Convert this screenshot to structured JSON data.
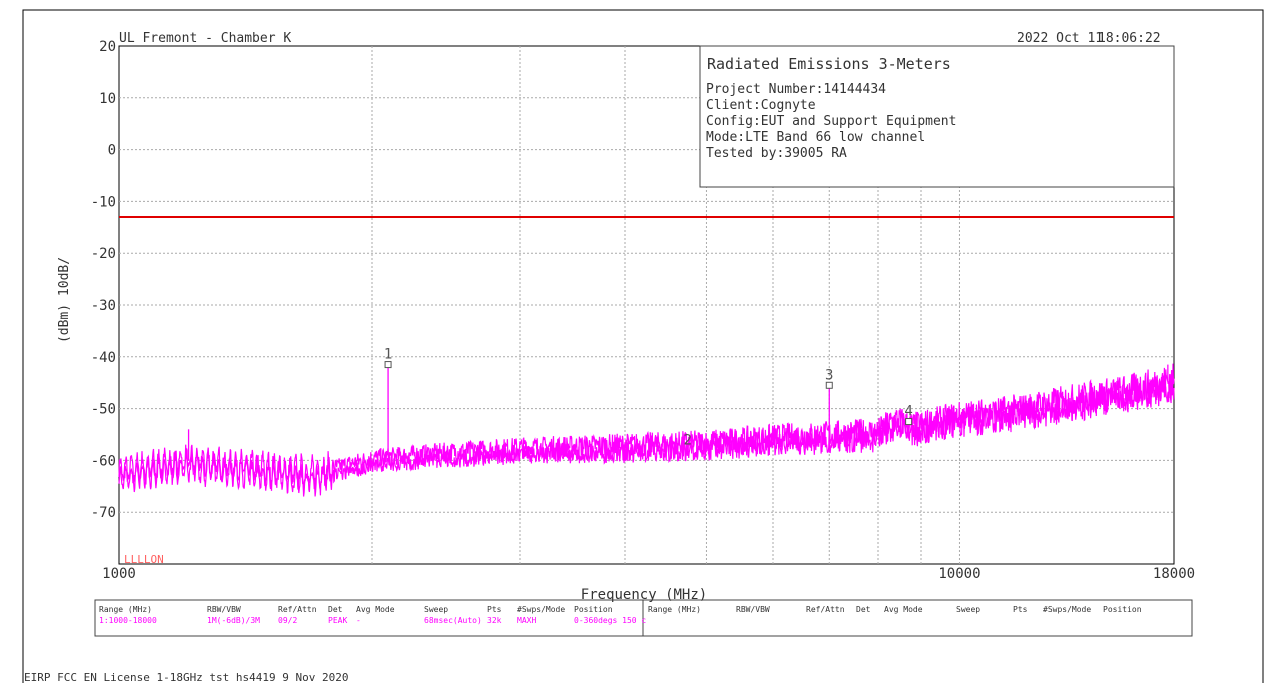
{
  "header": {
    "site": "UL Fremont - Chamber K",
    "date": "2022 Oct 11",
    "time": "18:06:22"
  },
  "info_box": {
    "title": "Radiated Emissions 3-Meters",
    "lines": [
      "Project Number:14144434",
      "Client:Cognyte",
      "Config:EUT and Support Equipment",
      "Mode:LTE Band 66 low channel",
      "Tested by:39005 RA"
    ]
  },
  "footer_text": "EIRP FCC EN License 1-18GHz tst hs4419  9 Nov 2020",
  "param_table": {
    "headers": [
      "Range (MHz)",
      "RBW/VBW",
      "Ref/Attn",
      "Det",
      "Avg Mode",
      "Sweep",
      "Pts",
      "#Swps/Mode",
      "Position"
    ],
    "row": [
      "1:1000-18000",
      "1M(-6dB)/3M",
      "09/2",
      "PEAK",
      "-",
      "68msec(Auto)",
      "32k",
      "MAXH",
      "0-360degs 150 c"
    ],
    "headers_right": [
      "Range (MHz)",
      "RBW/VBW",
      "Ref/Attn",
      "Det",
      "Avg Mode",
      "Sweep",
      "Pts",
      "#Swps/Mode",
      "Position"
    ]
  },
  "colors": {
    "trace": "#ff00ff",
    "limit": "#e00000",
    "grid": "#aaaaaa",
    "text": "#333333",
    "param_text": "#ff00ff",
    "corner_label": "#ff6060"
  },
  "chart_data": {
    "type": "line",
    "title": "",
    "xlabel": "Frequency (MHz)",
    "ylabel": "(dBm) 10dB/",
    "x_scale": "log",
    "xlim": [
      1000,
      18000
    ],
    "ylim": [
      -80,
      20
    ],
    "y_ticks": [
      20,
      10,
      0,
      -10,
      -20,
      -30,
      -40,
      -50,
      -60,
      -70
    ],
    "x_tick_labels": [
      {
        "x": 1000,
        "label": "1000"
      },
      {
        "x": 10000,
        "label": "10000"
      },
      {
        "x": 18000,
        "label": "18000"
      }
    ],
    "x_grid": [
      2000,
      3000,
      4000,
      5000,
      6000,
      7000,
      8000,
      9000,
      10000
    ],
    "grid": true,
    "limit_line": {
      "value": -13
    },
    "corner_label": "LLLLON",
    "markers": [
      {
        "label": "1",
        "x": 2090,
        "y": -41.5,
        "boxed": true
      },
      {
        "label": "2",
        "x": 4750,
        "y": -56,
        "boxed": false
      },
      {
        "label": "3",
        "x": 7000,
        "y": -45.5,
        "boxed": true
      },
      {
        "label": "4",
        "x": 8700,
        "y": -52.5,
        "boxed": true
      }
    ],
    "series": [
      {
        "noise_floor": [
          {
            "x": 1000,
            "y": -62
          },
          {
            "x": 1100,
            "y": -61
          },
          {
            "x": 1200,
            "y": -60
          },
          {
            "x": 1400,
            "y": -61
          },
          {
            "x": 1600,
            "y": -62
          },
          {
            "x": 1700,
            "y": -62.5
          },
          {
            "x": 2000,
            "y": -59.5
          },
          {
            "x": 2400,
            "y": -58.5
          },
          {
            "x": 3000,
            "y": -57.5
          },
          {
            "x": 4000,
            "y": -57
          },
          {
            "x": 5000,
            "y": -56.5
          },
          {
            "x": 6000,
            "y": -55.5
          },
          {
            "x": 7000,
            "y": -55
          },
          {
            "x": 8000,
            "y": -54.5
          },
          {
            "x": 8400,
            "y": -52
          },
          {
            "x": 8800,
            "y": -53.5
          },
          {
            "x": 10000,
            "y": -51.5
          },
          {
            "x": 12000,
            "y": -50
          },
          {
            "x": 14000,
            "y": -48
          },
          {
            "x": 16000,
            "y": -46.5
          },
          {
            "x": 18000,
            "y": -44.5
          }
        ],
        "spikes": [
          {
            "x": 1210,
            "y": -54
          },
          {
            "x": 2090,
            "y": -41.5
          },
          {
            "x": 7000,
            "y": -45.5
          },
          {
            "x": 8700,
            "y": -52.5
          },
          {
            "x": 17700,
            "y": -41.5
          }
        ]
      }
    ]
  }
}
